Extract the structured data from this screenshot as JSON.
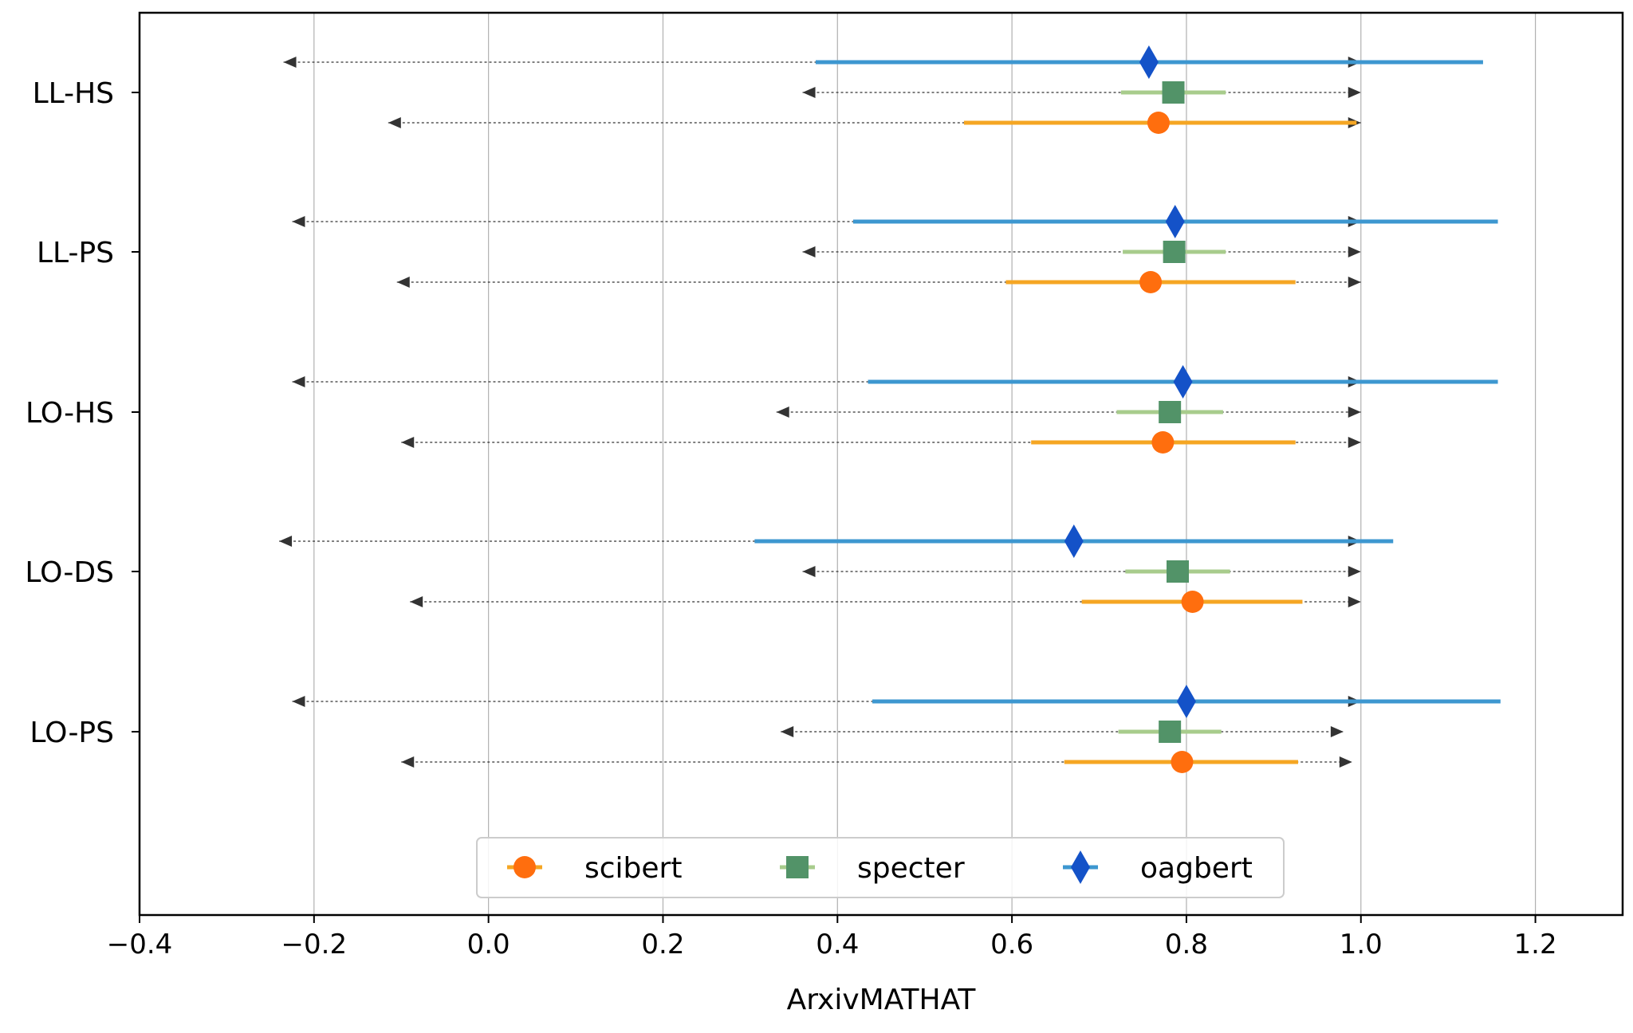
{
  "chart_data": {
    "type": "dot-errorbar",
    "xlabel": "ArxivMATHAT",
    "xlim": [
      -0.4,
      1.3
    ],
    "xticks": [
      -0.4,
      -0.2,
      0.0,
      0.2,
      0.4,
      0.6,
      0.8,
      1.0,
      1.2
    ],
    "xtick_labels": [
      "−0.4",
      "−0.2",
      "0.0",
      "0.2",
      "0.4",
      "0.6",
      "0.8",
      "1.0",
      "1.2"
    ],
    "grid": "vertical",
    "legend_position": "bottom-center",
    "categories": [
      "LL-HS",
      "LL-PS",
      "LO-HS",
      "LO-DS",
      "LO-PS"
    ],
    "series": [
      {
        "name": "scibert",
        "color": "#ff6e0e",
        "bar_color": "#f5a623",
        "marker": "circle",
        "points": [
          {
            "category": "LL-HS",
            "value": 0.768,
            "ci": [
              0.545,
              0.995
            ],
            "range": [
              -0.115,
              1.0
            ]
          },
          {
            "category": "LL-PS",
            "value": 0.759,
            "ci": [
              0.593,
              0.925
            ],
            "range": [
              -0.105,
              1.0
            ]
          },
          {
            "category": "LO-HS",
            "value": 0.773,
            "ci": [
              0.622,
              0.925
            ],
            "range": [
              -0.1,
              1.0
            ]
          },
          {
            "category": "LO-DS",
            "value": 0.807,
            "ci": [
              0.68,
              0.933
            ],
            "range": [
              -0.09,
              1.0
            ]
          },
          {
            "category": "LO-PS",
            "value": 0.795,
            "ci": [
              0.66,
              0.928
            ],
            "range": [
              -0.1,
              0.99
            ]
          }
        ]
      },
      {
        "name": "specter",
        "color": "#529368",
        "bar_color": "#a8cc8c",
        "marker": "square",
        "points": [
          {
            "category": "LL-HS",
            "value": 0.785,
            "ci": [
              0.725,
              0.845
            ],
            "range": [
              0.36,
              1.0
            ]
          },
          {
            "category": "LL-PS",
            "value": 0.786,
            "ci": [
              0.727,
              0.845
            ],
            "range": [
              0.36,
              1.0
            ]
          },
          {
            "category": "LO-HS",
            "value": 0.781,
            "ci": [
              0.72,
              0.842
            ],
            "range": [
              0.33,
              1.0
            ]
          },
          {
            "category": "LO-DS",
            "value": 0.79,
            "ci": [
              0.73,
              0.85
            ],
            "range": [
              0.36,
              1.0
            ]
          },
          {
            "category": "LO-PS",
            "value": 0.781,
            "ci": [
              0.722,
              0.84
            ],
            "range": [
              0.335,
              0.98
            ]
          }
        ]
      },
      {
        "name": "oagbert",
        "color": "#1452c8",
        "bar_color": "#3d97d0",
        "marker": "diamond",
        "points": [
          {
            "category": "LL-HS",
            "value": 0.757,
            "ci": [
              0.375,
              1.14
            ],
            "range": [
              -0.235,
              1.0
            ]
          },
          {
            "category": "LL-PS",
            "value": 0.787,
            "ci": [
              0.418,
              1.157
            ],
            "range": [
              -0.225,
              1.0
            ]
          },
          {
            "category": "LO-HS",
            "value": 0.796,
            "ci": [
              0.435,
              1.157
            ],
            "range": [
              -0.225,
              1.0
            ]
          },
          {
            "category": "LO-DS",
            "value": 0.671,
            "ci": [
              0.305,
              1.037
            ],
            "range": [
              -0.24,
              1.0
            ]
          },
          {
            "category": "LO-PS",
            "value": 0.8,
            "ci": [
              0.44,
              1.16
            ],
            "range": [
              -0.225,
              1.0
            ]
          }
        ]
      }
    ]
  }
}
